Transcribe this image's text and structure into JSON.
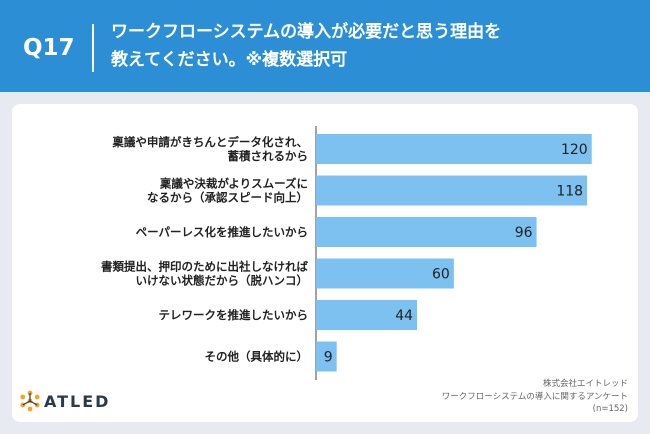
{
  "header": {
    "question_no": "Q17",
    "question_text": "ワークフローシステムの導入が必要だと思う理由を\n教えてください。※複数選択可"
  },
  "chart_data": {
    "type": "bar",
    "orientation": "horizontal",
    "categories": [
      [
        "稟議や申請がきちんとデータ化され、",
        "蓄積されるから"
      ],
      [
        "稟議や決裁がよりスムーズに",
        "なるから（承認スピード向上）"
      ],
      [
        "ペーパーレス化を推進したいから"
      ],
      [
        "書類提出、押印のために出社しなければ",
        "いけない状態だから（脱ハンコ）"
      ],
      [
        "テレワークを推進したいから"
      ],
      [
        "その他（具体的に）"
      ]
    ],
    "values": [
      120,
      118,
      96,
      60,
      44,
      9
    ],
    "bar_color": "#7cc1f0",
    "xlim": [
      0,
      121
    ],
    "grid": false
  },
  "footer": {
    "logo_text": "ATLED",
    "source_line1": "株式会社エイトレッド",
    "source_line2": "ワークフローシステムの導入に関するアンケート",
    "source_line3": "(n=152)"
  }
}
